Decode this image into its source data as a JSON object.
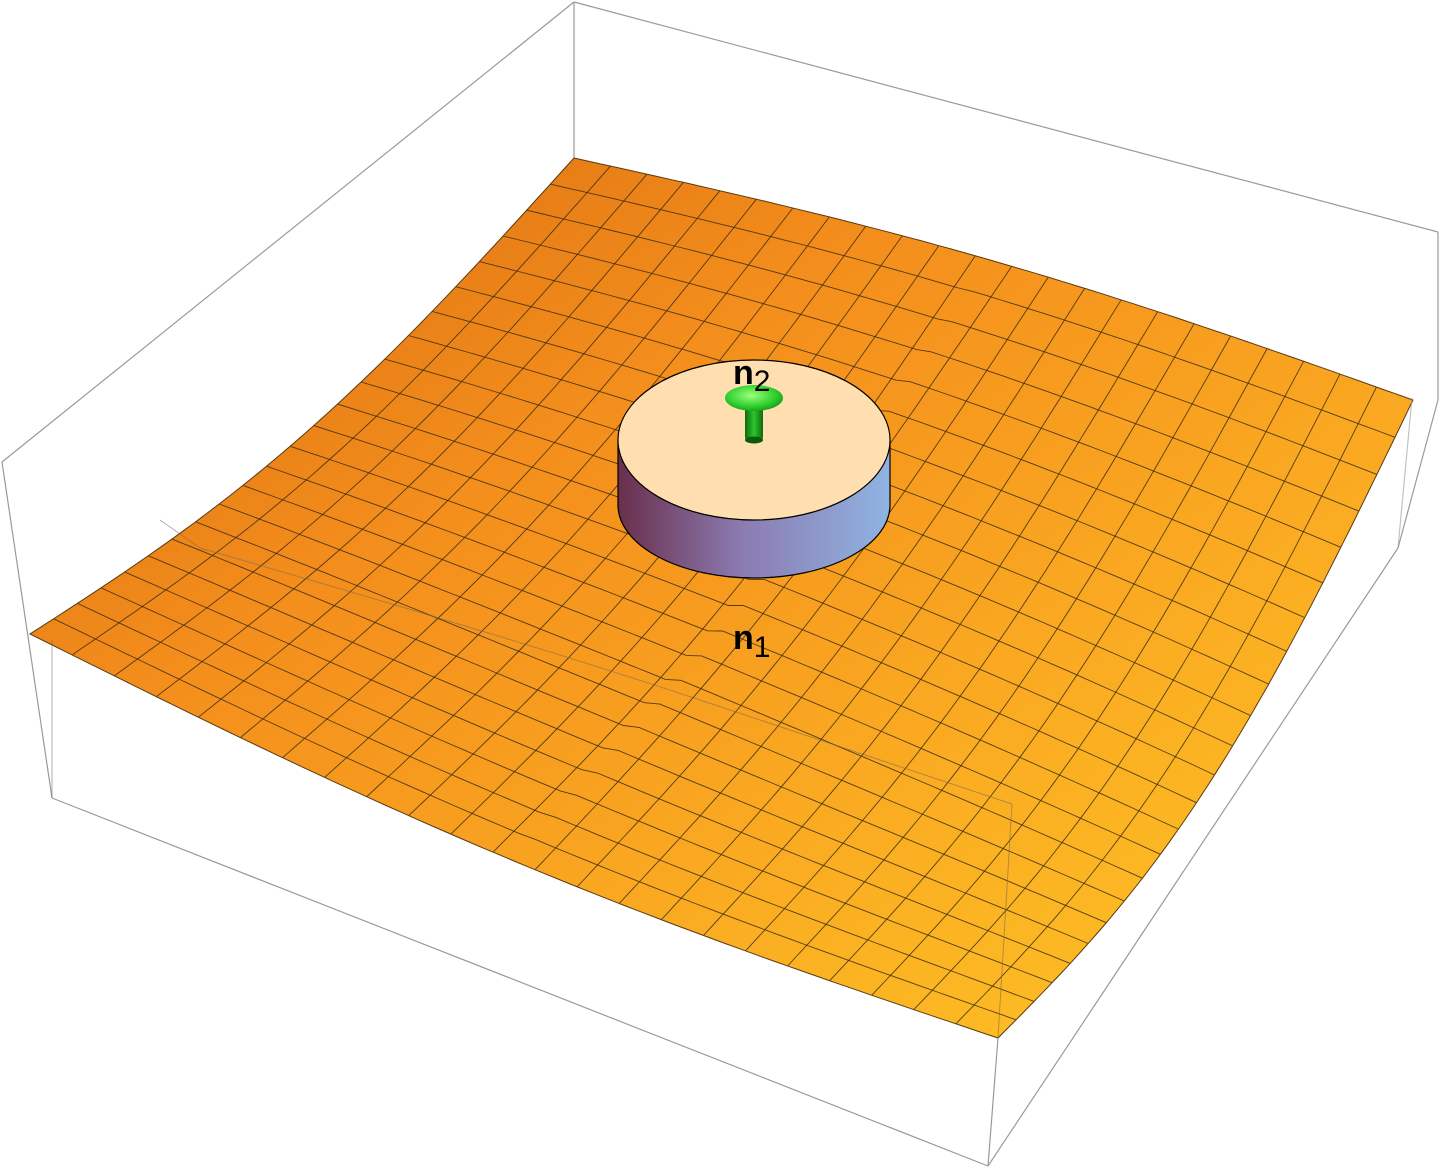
{
  "figure": {
    "surface_label": {
      "base": "n",
      "subscript": "1"
    },
    "disk_label": {
      "base": "n",
      "subscript": "2"
    }
  },
  "colors": {
    "surface_dark": "#e07812",
    "surface_mid": "#f5901a",
    "surface_light": "#fdbf1f",
    "grid_line": "#3a2a10",
    "box_edge": "#9a9a9a",
    "disk_top": "#ffdfb0",
    "disk_side_left": "#6a3050",
    "disk_side_right": "#8eb0e0",
    "arrow": "#22bb22"
  },
  "surface": {
    "grid_divisions": 23
  },
  "icons": {
    "normal_arrow": "normal-vector-arrow-icon"
  }
}
